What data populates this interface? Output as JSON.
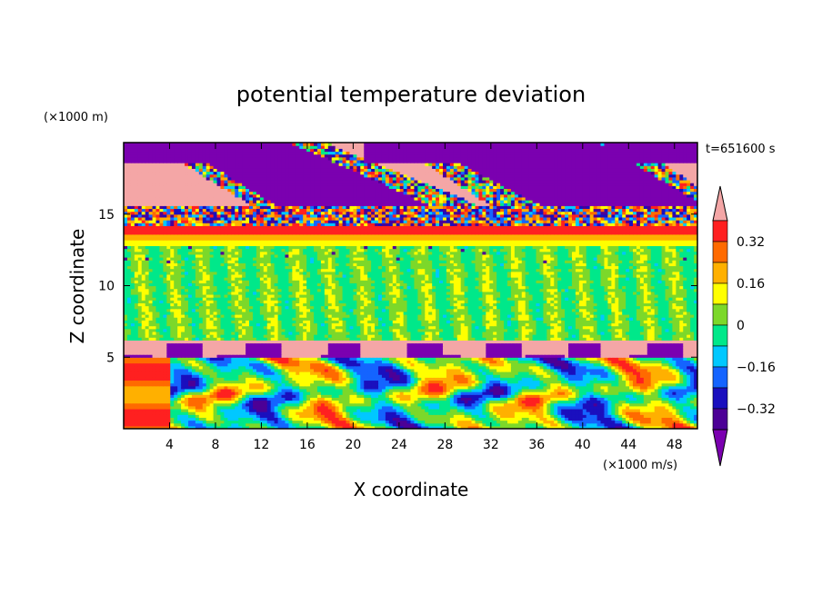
{
  "chart_data": {
    "type": "heatmap",
    "title": "potential temperature deviation",
    "xlabel": "X coordinate",
    "ylabel": "Z coordinate",
    "x_unit": "(×1000 m/s)",
    "y_unit": "(×1000 m)",
    "time_label": "t=651600 s",
    "x_ticks": [
      4,
      8,
      12,
      16,
      20,
      24,
      28,
      32,
      36,
      40,
      44,
      48
    ],
    "y_ticks": [
      5,
      10,
      15
    ],
    "xlim": [
      0,
      50
    ],
    "ylim": [
      0,
      20
    ],
    "colorbar": {
      "levels": [
        -0.4,
        -0.32,
        -0.24,
        -0.16,
        -0.08,
        0,
        0.08,
        0.16,
        0.24,
        0.32,
        0.4
      ],
      "colors": [
        "#7b00b0",
        "#4c0096",
        "#1a0fbe",
        "#1464ff",
        "#00c8ff",
        "#00e88a",
        "#7cd82a",
        "#ffff00",
        "#ffb000",
        "#ff6a00",
        "#ff2020",
        "#f4a6a6"
      ],
      "labels": [
        "0.32",
        "0.16",
        "0",
        "−0.16",
        "−0.32"
      ],
      "label_values": [
        0.32,
        0.16,
        0,
        -0.16,
        -0.32
      ]
    },
    "regions": [
      {
        "z_range": [
          0,
          5
        ],
        "description_value": "mixed",
        "values_range": [
          -0.4,
          0.4
        ]
      },
      {
        "z_range": [
          5,
          6
        ],
        "value": 0.4
      },
      {
        "z_range": [
          6,
          13
        ],
        "value": 0.0
      },
      {
        "z_range": [
          13,
          15
        ],
        "value": 0.3
      },
      {
        "z_range": [
          15,
          20
        ],
        "values_range": [
          -0.4,
          0.4
        ]
      }
    ]
  }
}
